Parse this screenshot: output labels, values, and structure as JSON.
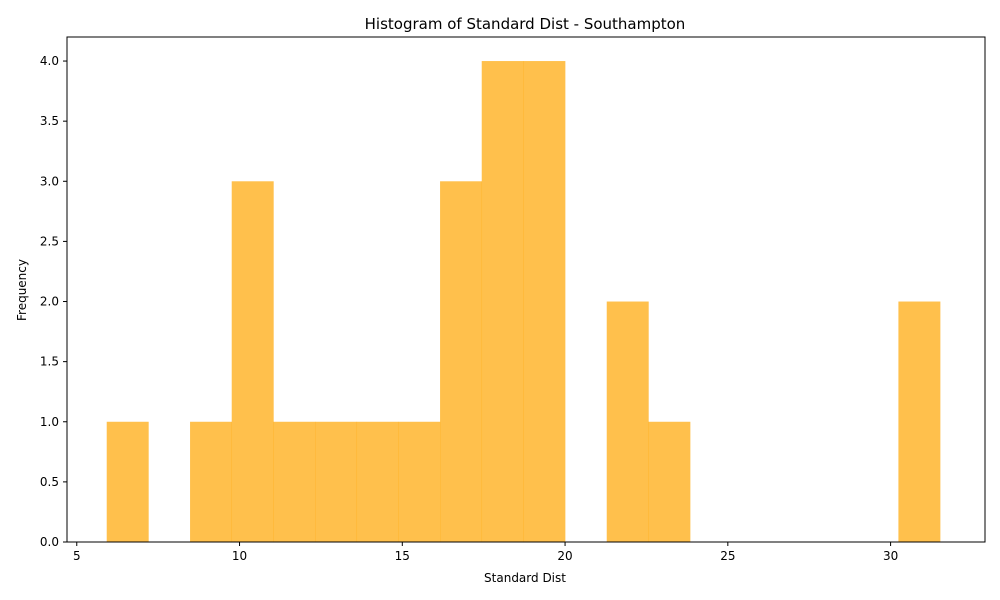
{
  "chart_data": {
    "type": "bar",
    "title": "Histogram of Standard Dist - Southampton",
    "xlabel": "Standard Dist",
    "ylabel": "Frequency",
    "xlim": [
      4.7,
      32.9
    ],
    "ylim": [
      0,
      4.2
    ],
    "xticks": [
      5,
      10,
      15,
      20,
      25,
      30
    ],
    "yticks": [
      0.0,
      0.5,
      1.0,
      1.5,
      2.0,
      2.5,
      3.0,
      3.5,
      4.0
    ],
    "bin_edges": [
      5.92,
      7.2,
      8.48,
      9.76,
      11.04,
      12.32,
      13.6,
      14.88,
      16.16,
      17.44,
      18.72,
      20.0,
      21.28,
      22.56,
      23.84,
      25.12,
      26.4,
      27.68,
      28.96,
      30.24,
      31.52
    ],
    "values": [
      1,
      0,
      1,
      3,
      1,
      1,
      1,
      1,
      3,
      4,
      4,
      0,
      2,
      1,
      0,
      0,
      0,
      0,
      0,
      2
    ],
    "bar_color": "#ffa500",
    "bar_alpha": 0.7,
    "grid": false
  }
}
